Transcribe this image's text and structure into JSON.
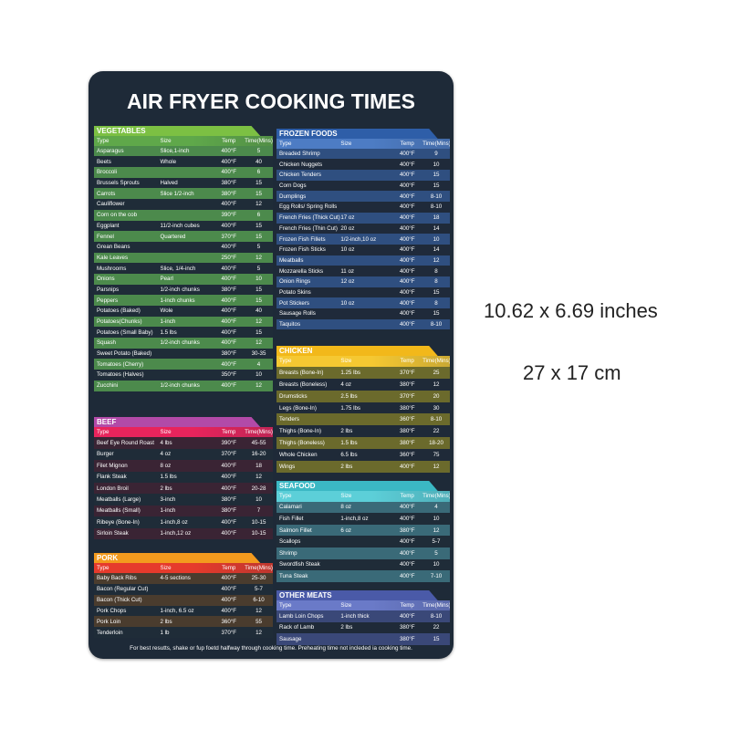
{
  "title": "AIR FRYER COOKING TIMES",
  "columns": [
    "Type",
    "Size",
    "Temp",
    "Time(Mins)"
  ],
  "sections": [
    {
      "id": "vegetables",
      "name": "VEGETABLES",
      "colors": {
        "header": "#7cc043",
        "colhead": "#5fa84a",
        "row": "#4c8a4c",
        "alt": "#1f2c38"
      },
      "rows": [
        [
          "Asparagus",
          "Slice,1-inch",
          "400°F",
          "5"
        ],
        [
          "Beets",
          "Whole",
          "400°F",
          "40"
        ],
        [
          "Broccoli",
          "",
          "400°F",
          "6"
        ],
        [
          "Brussels Sprouts",
          "Halved",
          "380°F",
          "15"
        ],
        [
          "Carrots",
          "Slice 1/2-inch",
          "380°F",
          "15"
        ],
        [
          "Cauliflower",
          "",
          "400°F",
          "12"
        ],
        [
          "Corn on the cob",
          "",
          "390°F",
          "6"
        ],
        [
          "Eggplant",
          "11/2-inch cubes",
          "400°F",
          "15"
        ],
        [
          "Fennel",
          "Quartered",
          "370°F",
          "15"
        ],
        [
          "Grean Beans",
          "",
          "400°F",
          "5"
        ],
        [
          "Kale Leaves",
          "",
          "250°F",
          "12"
        ],
        [
          "Mushrooms",
          "Slice, 1/4-inch",
          "400°F",
          "5"
        ],
        [
          "Onions",
          "Pearl",
          "400°F",
          "10"
        ],
        [
          "Parsnips",
          "1/2-inch chunks",
          "380°F",
          "15"
        ],
        [
          "Peppers",
          "1-inch chunks",
          "400°F",
          "15"
        ],
        [
          "Potatoes (Baked)",
          "Wole",
          "400°F",
          "40"
        ],
        [
          "Potatoes(Chunks)",
          "1-inch",
          "400°F",
          "12"
        ],
        [
          "Potatoes (Small Baby)",
          "1.5 lbs",
          "400°F",
          "15"
        ],
        [
          "Squash",
          "1/2-inch chunks",
          "400°F",
          "12"
        ],
        [
          "Sweet Potato (Baked)",
          "",
          "380°F",
          "30-35"
        ],
        [
          "Tomatoes (Cherry)",
          "",
          "400°F",
          "4"
        ],
        [
          "Tomatoes (Halves)",
          "",
          "350°F",
          "10"
        ],
        [
          "Zucchini",
          "1/2-inch chunks",
          "400°F",
          "12"
        ]
      ]
    },
    {
      "id": "beef",
      "name": "BEEF",
      "colors": {
        "header": "#b24aa8",
        "colhead": "#e8245c",
        "row": "#3a2434",
        "alt": "#1f2c38"
      },
      "rows": [
        [
          "Beef Eye Round Roast",
          "4 lbs",
          "390°F",
          "45-55"
        ],
        [
          "Burger",
          "4 oz",
          "370°F",
          "16-20"
        ],
        [
          "Filet Mignon",
          "8 oz",
          "400°F",
          "18"
        ],
        [
          "Flank Steak",
          "1.5 lbs",
          "400°F",
          "12"
        ],
        [
          "London Broil",
          "2 lbs",
          "400°F",
          "20-28"
        ],
        [
          "Meatballs (Large)",
          "3-inch",
          "380°F",
          "10"
        ],
        [
          "Meatballs (Small)",
          "1-inch",
          "380°F",
          "7"
        ],
        [
          "Ribeye (Bone-In)",
          "1-inch,8 oz",
          "400°F",
          "10-15"
        ],
        [
          "Sirloin Steak",
          "1-inch,12 oz",
          "400°F",
          "10-15"
        ]
      ]
    },
    {
      "id": "pork",
      "name": "PORK",
      "colors": {
        "header": "#f39a1e",
        "colhead": "#e63a2c",
        "row": "#4a3c2e",
        "alt": "#1f2c38"
      },
      "rows": [
        [
          "Baby Back Ribs",
          "4-5 sections",
          "400°F",
          "25-30"
        ],
        [
          "Bacon (Regular Cut)",
          "",
          "400°F",
          "5-7"
        ],
        [
          "Bacon (Thick Cut)",
          "",
          "400°F",
          "6-10"
        ],
        [
          "Pork Chops",
          "1-inch, 6.5 oz",
          "400°F",
          "12"
        ],
        [
          "Pork Loin",
          "2 lbs",
          "360°F",
          "55"
        ],
        [
          "Tenderloin",
          "1 lb",
          "370°F",
          "12"
        ]
      ]
    },
    {
      "id": "frozen-foods",
      "name": "FROZEN FOODS",
      "colors": {
        "header": "#2e5ea8",
        "colhead": "#4d7cc4",
        "row": "#2f4f80",
        "alt": "#1f2a3a"
      },
      "rows": [
        [
          "Breaded Shrimp",
          "",
          "400°F",
          "9"
        ],
        [
          "Chicken Nuggets",
          "",
          "400°F",
          "10"
        ],
        [
          "Chicken Tenders",
          "",
          "400°F",
          "15"
        ],
        [
          "Corn Dogs",
          "",
          "400°F",
          "15"
        ],
        [
          "Dumplings",
          "",
          "400°F",
          "8-10"
        ],
        [
          "Egg Rolls/ Spring Rolls",
          "",
          "400°F",
          "8-10"
        ],
        [
          "French Fries (Thick Cut)",
          "17 oz",
          "400°F",
          "18"
        ],
        [
          "French Fries (Thin Cut)",
          "20 oz",
          "400°F",
          "14"
        ],
        [
          "Frozen Fish Fillets",
          "1/2-inch,10 oz",
          "400°F",
          "10"
        ],
        [
          "Frozen Fish Sticks",
          "10 oz",
          "400°F",
          "14"
        ],
        [
          "Meatballs",
          "",
          "400°F",
          "12"
        ],
        [
          "Mozzarella Sticks",
          "11 oz",
          "400°F",
          "8"
        ],
        [
          "Onion Rings",
          "12 oz",
          "400°F",
          "8"
        ],
        [
          "Potato Skins",
          "",
          "400°F",
          "15"
        ],
        [
          "Pot Stickers",
          "10 oz",
          "400°F",
          "8"
        ],
        [
          "Sausage Rolls",
          "",
          "400°F",
          "15"
        ],
        [
          "Taquitos",
          "",
          "400°F",
          "8-10"
        ]
      ]
    },
    {
      "id": "chicken",
      "name": "CHICKEN",
      "colors": {
        "header": "#f2b81a",
        "colhead": "#f5c832",
        "row": "#6b6a2c",
        "alt": "#1f2a38"
      },
      "rows": [
        [
          "Breasts (Bone-In)",
          "1.25 lbs",
          "370°F",
          "25"
        ],
        [
          "Breasts (Boneless)",
          "4 oz",
          "380°F",
          "12"
        ],
        [
          "Drumsticks",
          "2.5 lbs",
          "370°F",
          "20"
        ],
        [
          "Legs (Bone-In)",
          "1.75 lbs",
          "380°F",
          "30"
        ],
        [
          "Tenders",
          "",
          "360°F",
          "8-10"
        ],
        [
          "Thighs (Bone-In)",
          "2 lbs",
          "380°F",
          "22"
        ],
        [
          "Thighs (Boneless)",
          "1.5 lbs",
          "380°F",
          "18-20"
        ],
        [
          "Whole Chicken",
          "6.5 lbs",
          "360°F",
          "75"
        ],
        [
          "Wings",
          "2 lbs",
          "400°F",
          "12"
        ]
      ]
    },
    {
      "id": "seafood",
      "name": "SEAFOOD",
      "colors": {
        "header": "#3bb8c4",
        "colhead": "#5ccfd8",
        "row": "#3a6a78",
        "alt": "#1f2c38"
      },
      "rows": [
        [
          "Calamari",
          "8 oz",
          "400°F",
          "4"
        ],
        [
          "Fish Fillet",
          "1-inch,8 oz",
          "400°F",
          "10"
        ],
        [
          "Salmon Fillet",
          "6 oz",
          "380°F",
          "12"
        ],
        [
          "Scallops",
          "",
          "400°F",
          "5-7"
        ],
        [
          "Shrimp",
          "",
          "400°F",
          "5"
        ],
        [
          "Swordfish Steak",
          "",
          "400°F",
          "10"
        ],
        [
          "Tuna Steak",
          "",
          "400°F",
          "7-10"
        ]
      ]
    },
    {
      "id": "other-meats",
      "name": "OTHER MEATS",
      "colors": {
        "header": "#4a5aa8",
        "colhead": "#6a7ac8",
        "row": "#3a4878",
        "alt": "#1f2a38"
      },
      "rows": [
        [
          "Lamb Loin Chops",
          "1-inch thick",
          "400°F",
          "8-10"
        ],
        [
          "Rack of Lamb",
          "2 lbs",
          "380°F",
          "22"
        ],
        [
          "Sausage",
          "",
          "380°F",
          "15"
        ]
      ]
    }
  ],
  "footer": "For best resutts, shake or fup foetd halfway through cooking time. Preheating time not incleded ia cooking time.",
  "dimensions": {
    "inches": "10.62 x 6.69 inches",
    "cm": "27 x 17 cm"
  }
}
